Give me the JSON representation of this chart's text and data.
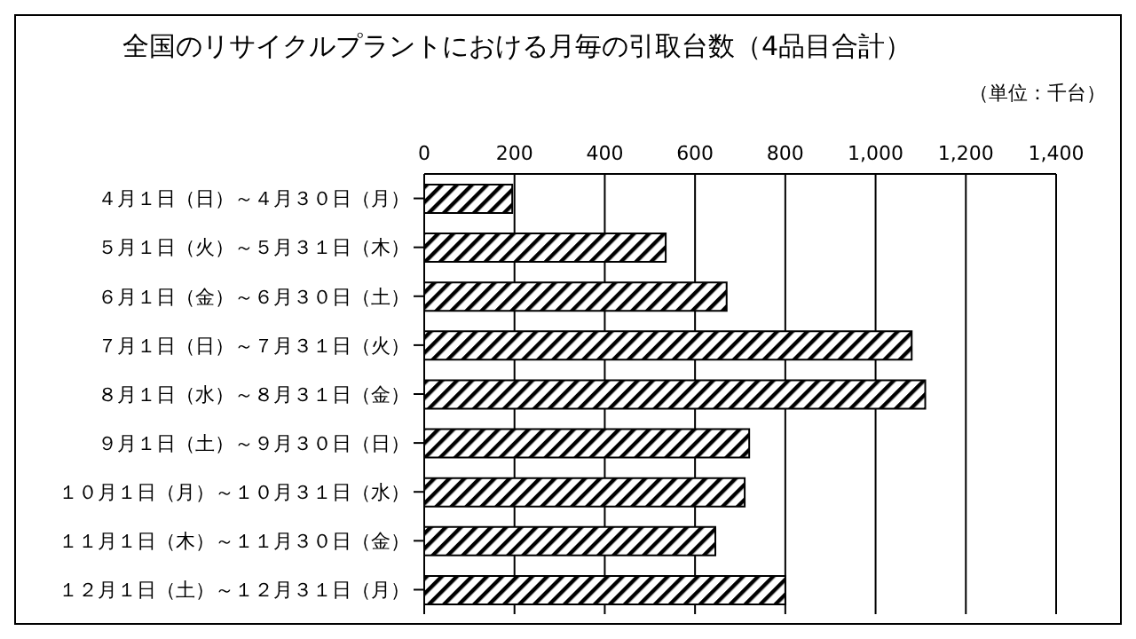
{
  "chart_data": {
    "type": "bar",
    "orientation": "horizontal",
    "title": "全国のリサイクルプラントにおける月毎の引取台数（4品目合計）",
    "annotations": [
      "（単位：千台）"
    ],
    "categories": [
      "４月１日（日）～４月３０日（月）",
      "５月１日（火）～５月３１日（木）",
      "６月１日（金）～６月３０日（土）",
      "７月１日（日）～７月３１日（火）",
      "８月１日（水）～８月３１日（金）",
      "９月１日（土）～９月３０日（日）",
      "１０月１日（月）～１０月３１日（水）",
      "１１月１日（木）～１１月３０日（金）",
      "１２月１日（土）～１２月３１日（月）"
    ],
    "values": [
      195,
      535,
      670,
      1080,
      1110,
      720,
      710,
      645,
      800
    ],
    "color": "#000000",
    "xlim": [
      0,
      1400
    ],
    "xticks": [
      0,
      200,
      400,
      600,
      800,
      {
        "value": 1000,
        "label": "1,000"
      },
      {
        "value": 1200,
        "label": "1,200"
      },
      {
        "value": 1400,
        "label": "1,400"
      }
    ],
    "grid": "x",
    "legend": false
  }
}
